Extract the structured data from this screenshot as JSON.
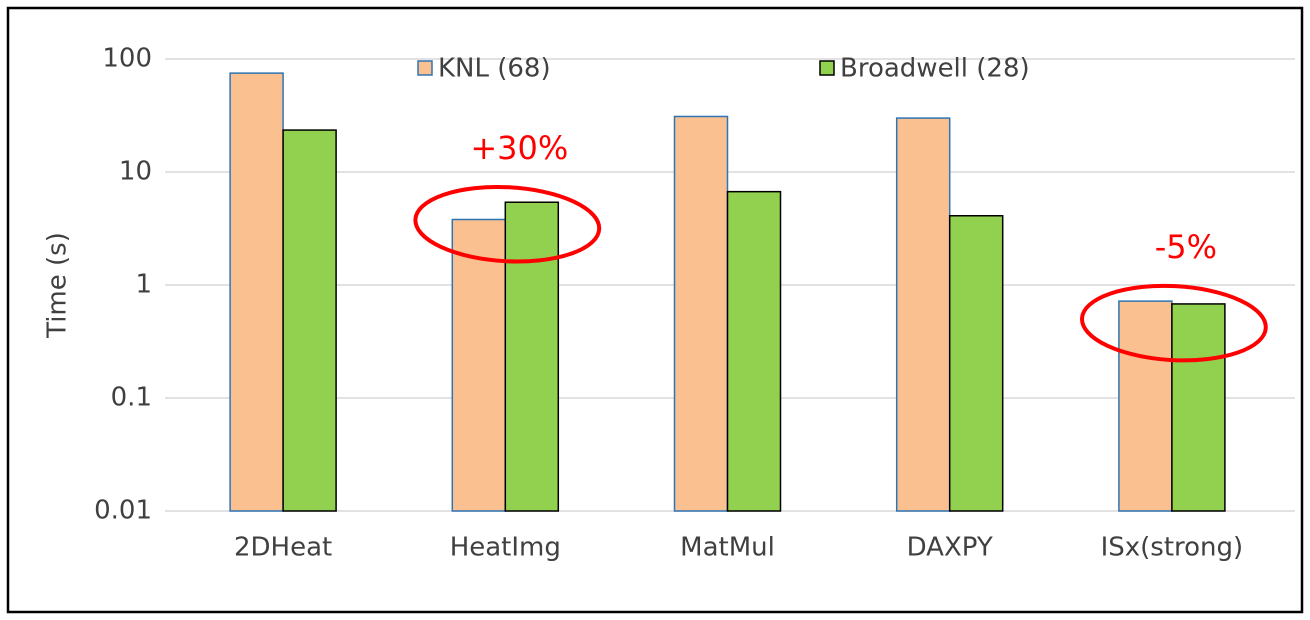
{
  "chart_data": {
    "type": "bar",
    "y_label": "Time (s)",
    "categories": [
      "2DHeat",
      "HeatImg",
      "MatMul",
      "DAXPY",
      "ISx(strong)"
    ],
    "series": [
      {
        "name": "KNL (68)",
        "color": "#fac090",
        "edge": "#2e75b6",
        "values": [
          75,
          3.8,
          31,
          30,
          0.72
        ]
      },
      {
        "name": "Broadwell (28)",
        "color": "#92d050",
        "edge": "#000000",
        "values": [
          23.5,
          5.4,
          6.7,
          4.1,
          0.68
        ]
      }
    ],
    "ylim": [
      0.01,
      100
    ],
    "yticks": [
      0.01,
      0.1,
      1,
      10,
      100
    ],
    "log_scale": true,
    "grid": true,
    "legend": "top",
    "annotations": [
      {
        "text": "+30%",
        "category": "HeatImg",
        "color": "#ff0000"
      },
      {
        "text": "-5%",
        "category": "ISx(strong)",
        "color": "#ff0000"
      }
    ]
  }
}
